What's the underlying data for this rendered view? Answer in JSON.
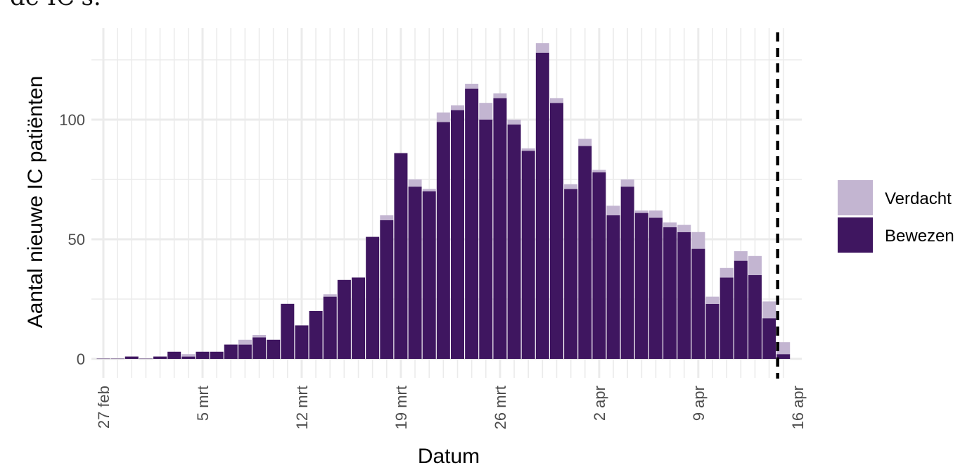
{
  "cut_text": "de IC's.",
  "chart_data": {
    "type": "bar",
    "stacked": true,
    "xlabel": "Datum",
    "ylabel": "Aantal nieuwe IC patiënten",
    "ylim": [
      0,
      135
    ],
    "yticks": [
      0,
      50,
      100
    ],
    "grid": true,
    "legend_position": "right",
    "x_tick_labels": [
      "27 feb",
      "5 mrt",
      "12 mrt",
      "19 mrt",
      "26 mrt",
      "2 apr",
      "9 apr",
      "16 apr"
    ],
    "x_tick_day_index": [
      0,
      7,
      14,
      21,
      28,
      35,
      42,
      49
    ],
    "reference_line_day_index": 47.6,
    "series": [
      {
        "name": "Bewezen",
        "color": "#3f1660",
        "values": [
          0,
          0,
          1,
          0,
          1,
          3,
          1,
          3,
          3,
          6,
          6,
          9,
          8,
          23,
          14,
          20,
          26,
          33,
          34,
          51,
          58,
          86,
          72,
          70,
          99,
          104,
          113,
          100,
          109,
          98,
          87,
          128,
          107,
          71,
          89,
          78,
          60,
          72,
          61,
          59,
          55,
          53,
          46,
          23,
          34,
          41,
          35,
          17,
          2
        ]
      },
      {
        "name": "Verdacht",
        "color": "#c3b5d1",
        "values": [
          0,
          0,
          0,
          0,
          0,
          0,
          1,
          0,
          0,
          0,
          2,
          1,
          0,
          0,
          0,
          0,
          1,
          0,
          0,
          0,
          2,
          0,
          3,
          1,
          4,
          2,
          2,
          7,
          2,
          2,
          1,
          4,
          2,
          2,
          3,
          1,
          4,
          3,
          1,
          3,
          2,
          3,
          7,
          3,
          4,
          4,
          8,
          7,
          5
        ]
      }
    ]
  }
}
